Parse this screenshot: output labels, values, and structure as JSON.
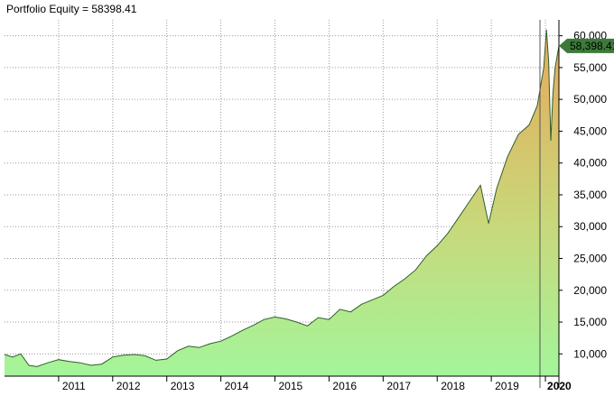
{
  "chart_data": {
    "type": "area",
    "title": "Portfolio Equity = 58398.41",
    "xlabel": "",
    "ylabel": "",
    "x_tick_labels": [
      "2011",
      "2012",
      "2013",
      "2014",
      "2015",
      "2016",
      "2017",
      "2018",
      "2019",
      "2020"
    ],
    "x_tick_values": [
      2011,
      2012,
      2013,
      2014,
      2015,
      2016,
      2017,
      2018,
      2019,
      2020
    ],
    "xlim": [
      2010.0,
      2020.25
    ],
    "y_tick_labels": [
      "10,000",
      "15,000",
      "20,000",
      "25,000",
      "30,000",
      "35,000",
      "40,000",
      "45,000",
      "50,000",
      "55,000",
      "60,000"
    ],
    "y_tick_values": [
      10000,
      15000,
      20000,
      25000,
      30000,
      35000,
      40000,
      45000,
      50000,
      55000,
      60000
    ],
    "ylim": [
      6500,
      62500
    ],
    "grid": true,
    "last_value_label": "58,398.41",
    "last_value": 58398.41,
    "colors": {
      "line": "#2e5e2e",
      "fill_bottom": "#a4f59a",
      "fill_top": "#e8a85a",
      "tag": "#3b7a3b",
      "grid": "#9a9a9a",
      "cursor": "#555555"
    },
    "series": [
      {
        "values": [
          [
            2010.0,
            9900
          ],
          [
            2010.15,
            9500
          ],
          [
            2010.3,
            10000
          ],
          [
            2010.45,
            8200
          ],
          [
            2010.6,
            8000
          ],
          [
            2010.8,
            8600
          ],
          [
            2011.0,
            9100
          ],
          [
            2011.2,
            8800
          ],
          [
            2011.4,
            8600
          ],
          [
            2011.6,
            8200
          ],
          [
            2011.8,
            8400
          ],
          [
            2012.0,
            9500
          ],
          [
            2012.2,
            9800
          ],
          [
            2012.4,
            9900
          ],
          [
            2012.6,
            9700
          ],
          [
            2012.8,
            9000
          ],
          [
            2013.0,
            9200
          ],
          [
            2013.2,
            10500
          ],
          [
            2013.4,
            11200
          ],
          [
            2013.6,
            11000
          ],
          [
            2013.8,
            11600
          ],
          [
            2014.0,
            12000
          ],
          [
            2014.2,
            12800
          ],
          [
            2014.4,
            13700
          ],
          [
            2014.6,
            14500
          ],
          [
            2014.8,
            15400
          ],
          [
            2015.0,
            15800
          ],
          [
            2015.2,
            15500
          ],
          [
            2015.4,
            15000
          ],
          [
            2015.6,
            14400
          ],
          [
            2015.8,
            15700
          ],
          [
            2016.0,
            15400
          ],
          [
            2016.2,
            17000
          ],
          [
            2016.4,
            16600
          ],
          [
            2016.6,
            17800
          ],
          [
            2016.8,
            18500
          ],
          [
            2017.0,
            19200
          ],
          [
            2017.2,
            20600
          ],
          [
            2017.4,
            21800
          ],
          [
            2017.6,
            23200
          ],
          [
            2017.8,
            25400
          ],
          [
            2018.0,
            27000
          ],
          [
            2018.2,
            29000
          ],
          [
            2018.4,
            31500
          ],
          [
            2018.6,
            34000
          ],
          [
            2018.8,
            36500
          ],
          [
            2018.95,
            30500
          ],
          [
            2019.1,
            36000
          ],
          [
            2019.3,
            41000
          ],
          [
            2019.5,
            44500
          ],
          [
            2019.7,
            46000
          ],
          [
            2019.85,
            49000
          ],
          [
            2019.97,
            55000
          ],
          [
            2020.02,
            61000
          ],
          [
            2020.06,
            56000
          ],
          [
            2020.1,
            43500
          ],
          [
            2020.14,
            51000
          ],
          [
            2020.18,
            55000
          ],
          [
            2020.25,
            58398.41
          ]
        ]
      }
    ]
  }
}
